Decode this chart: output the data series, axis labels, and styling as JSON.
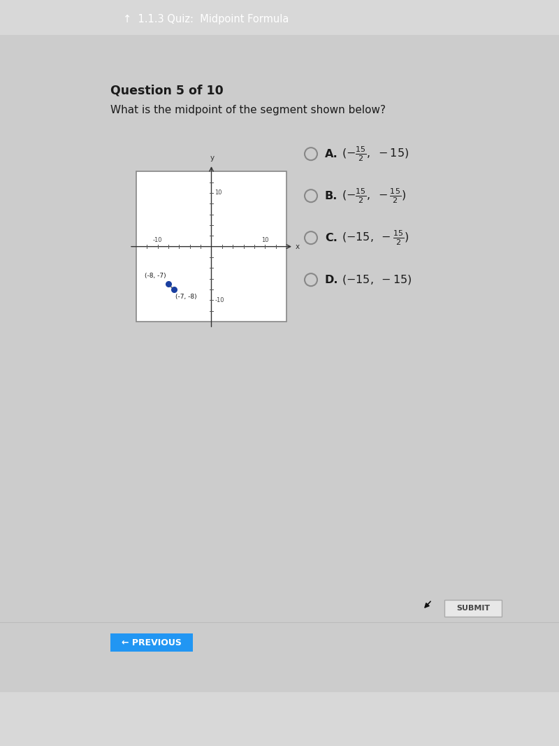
{
  "bg_color": "#d8d8d8",
  "header_color": "#52b8be",
  "header_text": "↑  1.1.3 Quiz:  Midpoint Formula",
  "question_label": "Question 5 of 10",
  "question_text": "What is the midpoint of the segment shown below?",
  "point1": [
    -8,
    -7
  ],
  "point2": [
    -7,
    -8
  ],
  "point_color": "#1a3fa0",
  "choices_A": "$(-\\frac{15}{2},\\ -15)$",
  "choices_B": "$(-\\frac{15}{2},\\ -\\frac{15}{2})$",
  "choices_C": "$(-15,\\ -\\frac{15}{2})$",
  "choices_D": "$(-15,\\ -15)$",
  "choices_labels": [
    "A.",
    "B.",
    "C.",
    "D."
  ],
  "submit_btn_text": "SUBMIT",
  "prev_btn_color": "#2196F3",
  "prev_btn_text": "← PREVIOUS",
  "nav_bar_color": "#1a1a1a",
  "content_bg": "#d4d4d4",
  "white": "#ffffff",
  "plot_border_color": "#888888",
  "segment_color": "#666666"
}
